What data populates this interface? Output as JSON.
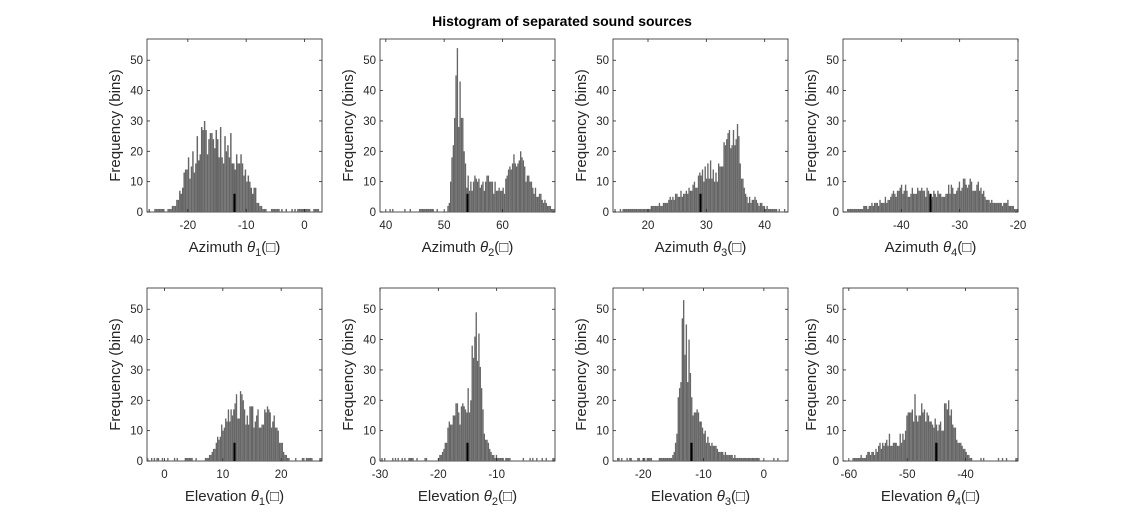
{
  "figure": {
    "title": "Histogram of separated sound sources",
    "bar_color": "#666666",
    "marker_color": "#000000"
  },
  "chart_data": [
    {
      "type": "bar",
      "id": "az1",
      "row": 0,
      "col": 0,
      "title": "",
      "ylabel": "Frequency (bins)",
      "xlabel": "Azimuth θ₁(□)",
      "xlabel_parts": [
        "Azimuth ",
        "θ",
        "1",
        "(□)"
      ],
      "xlim": [
        -27,
        3
      ],
      "ylim": [
        0,
        57
      ],
      "xticks": [
        -20,
        -10,
        0
      ],
      "yticks": [
        0,
        10,
        20,
        30,
        40,
        50
      ],
      "marker": {
        "x": -12,
        "y": 6
      },
      "peaks": [
        [
          -25,
          1,
          0.8
        ],
        [
          -21,
          3,
          1.0
        ],
        [
          -19,
          12,
          1.5
        ],
        [
          -17,
          13,
          1.5
        ],
        [
          -15,
          14,
          1.5
        ],
        [
          -13,
          12,
          1.5
        ],
        [
          -11,
          11,
          1.2
        ],
        [
          -9,
          6,
          1.0
        ],
        [
          -5,
          1,
          0.7
        ],
        [
          0,
          1,
          0.6
        ],
        [
          2,
          1,
          0.5
        ]
      ],
      "n_bins": 120,
      "seed": 11
    },
    {
      "type": "bar",
      "id": "az2",
      "row": 0,
      "col": 1,
      "title": "",
      "ylabel": "Frequency (bins)",
      "xlabel": "Azimuth θ₂(□)",
      "xlabel_parts": [
        "Azimuth ",
        "θ",
        "2",
        "(□)"
      ],
      "xlim": [
        39,
        69
      ],
      "ylim": [
        0,
        57
      ],
      "xticks": [
        40,
        50,
        60
      ],
      "yticks": [
        0,
        10,
        20,
        30,
        40,
        50
      ],
      "marker": {
        "x": 54,
        "y": 6
      },
      "peaks": [
        [
          52,
          40,
          0.5
        ],
        [
          53,
          20,
          0.5
        ],
        [
          55,
          9,
          1.5
        ],
        [
          58,
          8,
          1.5
        ],
        [
          62,
          13,
          1.3
        ],
        [
          64,
          9,
          1.2
        ],
        [
          66,
          4,
          1.2
        ],
        [
          68,
          1,
          0.8
        ],
        [
          47,
          1,
          1.5
        ]
      ],
      "n_bins": 130,
      "seed": 23
    },
    {
      "type": "bar",
      "id": "az3",
      "row": 0,
      "col": 2,
      "title": "",
      "ylabel": "Frequency (bins)",
      "xlabel": "Azimuth θ₃(□)",
      "xlabel_parts": [
        "Azimuth ",
        "θ",
        "3",
        "(□)"
      ],
      "xlim": [
        14,
        44
      ],
      "ylim": [
        0,
        57
      ],
      "xticks": [
        20,
        30,
        40
      ],
      "yticks": [
        0,
        10,
        20,
        30,
        40,
        50
      ],
      "marker": {
        "x": 29,
        "y": 6
      },
      "peaks": [
        [
          17,
          1,
          1.5
        ],
        [
          22,
          2,
          1.5
        ],
        [
          25,
          4,
          1.5
        ],
        [
          28,
          8,
          1.5
        ],
        [
          31,
          12,
          1.3
        ],
        [
          34,
          20,
          1.2
        ],
        [
          35,
          14,
          0.8
        ],
        [
          38,
          4,
          1.2
        ],
        [
          41,
          1,
          1.0
        ]
      ],
      "n_bins": 130,
      "seed": 37
    },
    {
      "type": "bar",
      "id": "az4",
      "row": 0,
      "col": 3,
      "title": "",
      "ylabel": "Frequency (bins)",
      "xlabel": "Azimuth θ₄(□)",
      "xlabel_parts": [
        "Azimuth ",
        "θ",
        "4",
        "(□)"
      ],
      "xlim": [
        -50,
        -20
      ],
      "ylim": [
        0,
        57
      ],
      "xticks": [
        -40,
        -30,
        -20
      ],
      "yticks": [
        0,
        10,
        20,
        30,
        40,
        50
      ],
      "marker": {
        "x": -35,
        "y": 6
      },
      "peaks": [
        [
          -48,
          1,
          1.2
        ],
        [
          -44,
          3,
          1.5
        ],
        [
          -40,
          7,
          1.6
        ],
        [
          -36,
          6,
          1.6
        ],
        [
          -32,
          6,
          1.5
        ],
        [
          -29,
          8,
          1.4
        ],
        [
          -26,
          6,
          1.4
        ],
        [
          -22,
          3,
          1.2
        ]
      ],
      "n_bins": 130,
      "seed": 41
    },
    {
      "type": "bar",
      "id": "el1",
      "row": 1,
      "col": 0,
      "title": "",
      "ylabel": "Frequency (bins)",
      "xlabel": "Elevation θ₁(□)",
      "xlabel_parts": [
        "Elevation ",
        "θ",
        "1",
        "(□)"
      ],
      "xlim": [
        -3,
        27
      ],
      "ylim": [
        0,
        57
      ],
      "xticks": [
        0,
        10,
        20
      ],
      "yticks": [
        0,
        10,
        20,
        30,
        40,
        50
      ],
      "marker": {
        "x": 12,
        "y": 6
      },
      "peaks": [
        [
          9,
          3,
          1.0
        ],
        [
          11,
          13,
          1.2
        ],
        [
          13,
          14,
          1.2
        ],
        [
          15,
          8,
          1.0
        ],
        [
          17,
          12,
          1.2
        ],
        [
          19,
          9,
          1.0
        ],
        [
          4,
          1,
          0.5
        ],
        [
          25,
          1,
          0.5
        ]
      ],
      "n_bins": 130,
      "seed": 53
    },
    {
      "type": "bar",
      "id": "el2",
      "row": 1,
      "col": 1,
      "title": "",
      "ylabel": "Frequency (bins)",
      "xlabel": "Elevation θ₂(□)",
      "xlabel_parts": [
        "Elevation ",
        "θ",
        "2",
        "(□)"
      ],
      "xlim": [
        -30,
        0
      ],
      "ylim": [
        0,
        57
      ],
      "xticks": [
        -30,
        -20,
        -10
      ],
      "yticks": [
        0,
        10,
        20,
        30,
        40,
        50
      ],
      "marker": {
        "x": -15,
        "y": 6
      },
      "peaks": [
        [
          -17,
          16,
          1.2
        ],
        [
          -15,
          10,
          0.8
        ],
        [
          -13.5,
          38,
          0.7
        ],
        [
          -12,
          6,
          0.8
        ],
        [
          -10,
          1,
          1.0
        ]
      ],
      "n_bins": 130,
      "seed": 67
    },
    {
      "type": "bar",
      "id": "el3",
      "row": 1,
      "col": 2,
      "title": "",
      "ylabel": "Frequency (bins)",
      "xlabel": "Elevation θ₃(□)",
      "xlabel_parts": [
        "Elevation ",
        "θ",
        "3",
        "(□)"
      ],
      "xlim": [
        -25,
        4
      ],
      "ylim": [
        0,
        57
      ],
      "xticks": [
        -20,
        -10,
        0
      ],
      "yticks": [
        0,
        10,
        20,
        30,
        40,
        50
      ],
      "marker": {
        "x": -12,
        "y": 6
      },
      "peaks": [
        [
          -16,
          1,
          1.2
        ],
        [
          -13.5,
          34,
          0.6
        ],
        [
          -12.5,
          20,
          0.6
        ],
        [
          -11,
          12,
          1.0
        ],
        [
          -9,
          5,
          1.2
        ],
        [
          -6,
          2,
          1.5
        ],
        [
          -2,
          1,
          1.0
        ]
      ],
      "n_bins": 130,
      "seed": 79
    },
    {
      "type": "bar",
      "id": "el4",
      "row": 1,
      "col": 3,
      "title": "",
      "ylabel": "Frequency (bins)",
      "xlabel": "Elevation θ₄(□)",
      "xlabel_parts": [
        "Elevation ",
        "θ",
        "4",
        "(□)"
      ],
      "xlim": [
        -61,
        -31
      ],
      "ylim": [
        0,
        57
      ],
      "xticks": [
        -60,
        -50,
        -40
      ],
      "yticks": [
        0,
        10,
        20,
        30,
        40,
        50
      ],
      "marker": {
        "x": -45,
        "y": 6
      },
      "peaks": [
        [
          -55,
          3,
          1.5
        ],
        [
          -52,
          7,
          1.5
        ],
        [
          -49,
          16,
          1.0
        ],
        [
          -47,
          11,
          1.0
        ],
        [
          -45,
          9,
          1.0
        ],
        [
          -43,
          16,
          0.8
        ],
        [
          -41,
          5,
          1.0
        ],
        [
          -58,
          1,
          1.0
        ]
      ],
      "n_bins": 130,
      "seed": 83
    }
  ]
}
